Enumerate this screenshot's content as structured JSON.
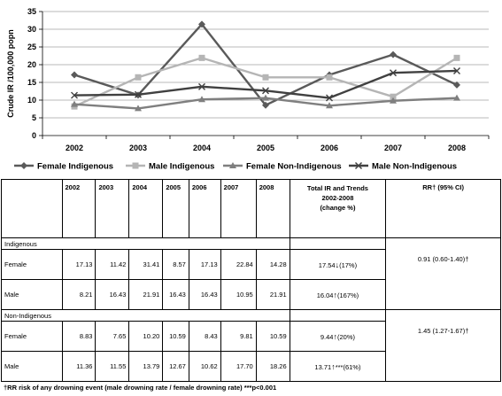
{
  "chart_data": {
    "type": "line",
    "categories": [
      "2002",
      "2003",
      "2004",
      "2005",
      "2006",
      "2007",
      "2008"
    ],
    "ylabel": "Crude IR /100,000 popn",
    "ylim": [
      0,
      35
    ],
    "yticks": [
      0,
      5,
      10,
      15,
      20,
      25,
      30,
      35
    ],
    "grid": true,
    "legend_position": "bottom",
    "series": [
      {
        "name": "Female Indigenous",
        "marker": "diamond",
        "color": "#5a5a5a",
        "values": [
          17.13,
          11.42,
          31.41,
          8.57,
          17.13,
          22.84,
          14.28
        ]
      },
      {
        "name": "Male Indigenous",
        "marker": "square",
        "color": "#b5b5b5",
        "values": [
          8.21,
          16.43,
          21.91,
          16.43,
          16.43,
          10.95,
          21.91
        ]
      },
      {
        "name": "Female Non-Indigenous",
        "marker": "triangle",
        "color": "#7f7f7f",
        "values": [
          8.83,
          7.65,
          10.2,
          10.59,
          8.43,
          9.81,
          10.59
        ]
      },
      {
        "name": "Male Non-Indigenous",
        "marker": "x",
        "color": "#404040",
        "values": [
          11.36,
          11.55,
          13.79,
          12.67,
          10.62,
          17.7,
          18.26
        ]
      }
    ]
  },
  "table": {
    "years": [
      "2002",
      "2003",
      "2004",
      "2005",
      "2006",
      "2007",
      "2008"
    ],
    "total_header": [
      "Total IR and Trends",
      "2002-2008",
      "(change %)"
    ],
    "rr_header": "RR† (95% CI)",
    "sections": [
      {
        "label": "Indigenous",
        "rows": [
          {
            "label": "Female",
            "values": [
              "17.13",
              "11.42",
              "31.41",
              "8.57",
              "17.13",
              "22.84",
              "14.28"
            ],
            "total": "17.54",
            "arrow": "↓",
            "stars": "",
            "change": "(17%)",
            "rr": "0.91 (0.60-1.40)†"
          },
          {
            "label": "Male",
            "values": [
              "8.21",
              "16.43",
              "21.91",
              "16.43",
              "16.43",
              "10.95",
              "21.91"
            ],
            "total": "16.04",
            "arrow": "↑",
            "stars": "",
            "change": "(167%)",
            "rr": ""
          }
        ]
      },
      {
        "label": "Non-Indigenous",
        "rows": [
          {
            "label": "Female",
            "values": [
              "8.83",
              "7.65",
              "10.20",
              "10.59",
              "8.43",
              "9.81",
              "10.59"
            ],
            "total": "9.44",
            "arrow": "↑",
            "stars": "",
            "change": "(20%)",
            "rr": "1.45 (1.27-1.67)†"
          },
          {
            "label": "Male",
            "values": [
              "11.36",
              "11.55",
              "13.79",
              "12.67",
              "10.62",
              "17.70",
              "18.26"
            ],
            "total": "13.71",
            "arrow": "↑",
            "stars": "***",
            "change": "(61%)",
            "rr": ""
          }
        ]
      }
    ]
  },
  "footnote": "†RR risk of any drowning event  (male drowning rate / female drowning rate) ***p<0.001"
}
